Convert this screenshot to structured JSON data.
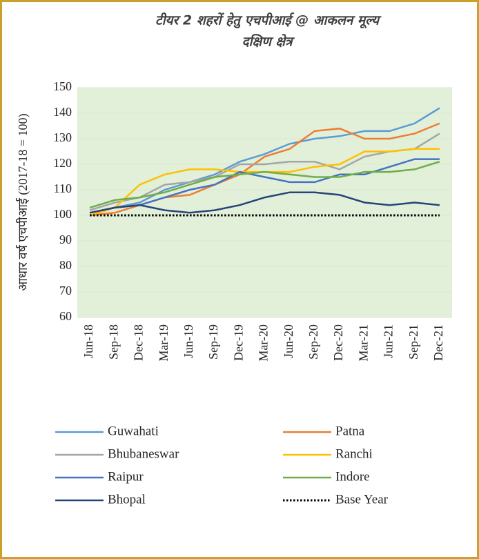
{
  "chart_data": {
    "type": "line",
    "title": "टीयर 2 शहरों हेतु एचपीआई @ आकलन मूल्य",
    "subtitle": "दक्षिण क्षेत्र",
    "y_label": "आधार वर्ष एचपीआई (2017-18 = 100)",
    "categories": [
      "Jun-18",
      "Sep-18",
      "Dec-18",
      "Mar-19",
      "Jun-19",
      "Sep-19",
      "Dec-19",
      "Mar-20",
      "Jun-20",
      "Sep-20",
      "Dec-20",
      "Mar-21",
      "Jun-21",
      "Sep-21",
      "Dec-21"
    ],
    "ylim": [
      60,
      150
    ],
    "yticks": [
      60,
      70,
      80,
      90,
      100,
      110,
      120,
      130,
      140,
      150
    ],
    "grid": true,
    "series": [
      {
        "name": "Guwahati",
        "color": "#5b9bd5",
        "values": [
          101,
          103,
          105,
          110,
          113,
          116,
          121,
          124,
          128,
          130,
          131,
          133,
          133,
          136,
          142
        ]
      },
      {
        "name": "Patna",
        "color": "#ed7d31",
        "values": [
          100,
          101,
          104,
          107,
          108,
          112,
          116,
          123,
          126,
          133,
          134,
          130,
          130,
          132,
          136
        ]
      },
      {
        "name": "Bhubaneswar",
        "color": "#a5a5a5",
        "values": [
          102,
          105,
          107,
          112,
          113,
          115,
          120,
          120,
          121,
          121,
          118,
          123,
          125,
          126,
          132
        ]
      },
      {
        "name": "Ranchi",
        "color": "#ffc000",
        "values": [
          100,
          103,
          112,
          116,
          118,
          118,
          117,
          117,
          117,
          119,
          120,
          125,
          125,
          126,
          126
        ]
      },
      {
        "name": "Raipur",
        "color": "#4472c4",
        "values": [
          101,
          103,
          104,
          107,
          110,
          112,
          117,
          115,
          113,
          113,
          116,
          116,
          119,
          122,
          122
        ]
      },
      {
        "name": "Indore",
        "color": "#70ad47",
        "values": [
          103,
          106,
          107,
          109,
          112,
          115,
          116,
          117,
          116,
          115,
          115,
          117,
          117,
          118,
          121
        ]
      },
      {
        "name": "Bhopal",
        "color": "#264478",
        "values": [
          101,
          103,
          104,
          102,
          101,
          102,
          104,
          107,
          109,
          109,
          108,
          105,
          104,
          105,
          104
        ]
      },
      {
        "name": "Base Year",
        "color": "#000000",
        "dash": "dotted",
        "values": [
          100,
          100,
          100,
          100,
          100,
          100,
          100,
          100,
          100,
          100,
          100,
          100,
          100,
          100,
          100
        ]
      }
    ]
  }
}
